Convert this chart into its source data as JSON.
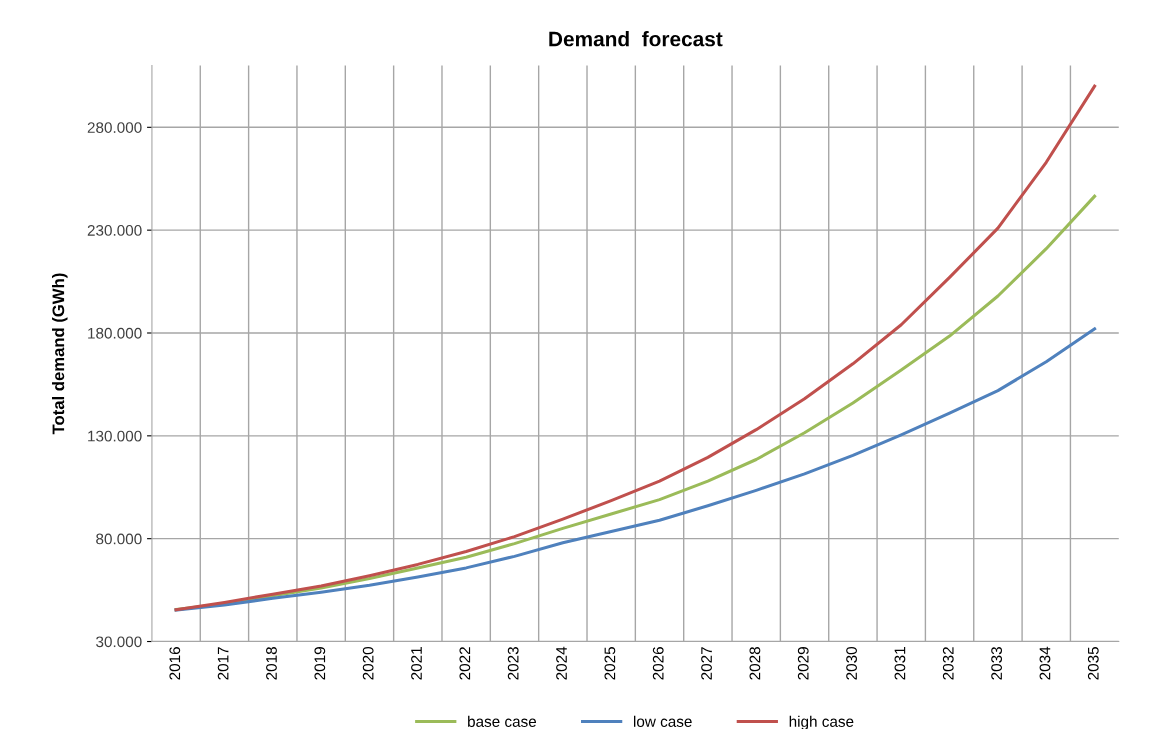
{
  "chart_data": {
    "type": "line",
    "title": "Demand  forecast",
    "ylabel": "Total demand (GWh)",
    "categories": [
      "2016",
      "2017",
      "2018",
      "2019",
      "2020",
      "2021",
      "2022",
      "2023",
      "2024",
      "2025",
      "2026",
      "2027",
      "2028",
      "2029",
      "2030",
      "2031",
      "2032",
      "2033",
      "2034",
      "2035"
    ],
    "series": [
      {
        "name": "base case",
        "color": "#9bbb59",
        "values": [
          45500,
          48400,
          52300,
          56000,
          60600,
          65800,
          71000,
          77600,
          85000,
          92000,
          99000,
          108000,
          118500,
          131500,
          146000,
          162000,
          178500,
          198000,
          221000,
          246500
        ]
      },
      {
        "name": "low case",
        "color": "#4f81bd",
        "values": [
          45300,
          47800,
          51000,
          54000,
          57400,
          61400,
          65800,
          71400,
          78000,
          83500,
          89000,
          96000,
          103500,
          111500,
          120500,
          130500,
          141000,
          152000,
          166000,
          182000
        ]
      },
      {
        "name": "high case",
        "color": "#c0504d",
        "values": [
          45500,
          49000,
          53000,
          57000,
          62000,
          67500,
          73800,
          81000,
          89500,
          98500,
          108000,
          119500,
          133000,
          148000,
          165000,
          184000,
          207000,
          231000,
          263000,
          300000
        ]
      }
    ],
    "ylim": [
      30000,
      310000
    ],
    "yticks": [
      {
        "value": 30000,
        "label": "30.000"
      },
      {
        "value": 80000,
        "label": "80.000"
      },
      {
        "value": 130000,
        "label": "130.000"
      },
      {
        "value": 180000,
        "label": "180.000"
      },
      {
        "value": 230000,
        "label": "230.000"
      },
      {
        "value": 280000,
        "label": "280.000"
      }
    ],
    "grid": true,
    "legend": "bottom",
    "marker": "none",
    "line_style": "solid"
  }
}
